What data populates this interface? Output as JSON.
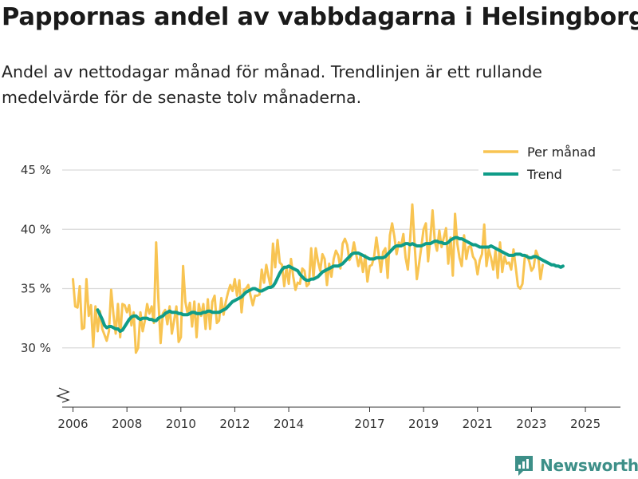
{
  "title": "Pappornas andel av vabbdagarna i Helsingborg",
  "subtitle": "Andel av nettodagar månad för månad. Trendlinjen är ett rullande medelvärde för de senaste tolv månaderna.",
  "brand": "Newsworthy",
  "colors": {
    "monthly": "#f8c452",
    "trend": "#0f9c88",
    "grid": "#d9d9d9",
    "axis": "#333333",
    "brand": "#3d8f88"
  },
  "chart_data": {
    "type": "line",
    "title": "Pappornas andel av vabbdagarna i Helsingborg",
    "xlabel": "",
    "ylabel": "",
    "unit": "%",
    "ylim": [
      25,
      45
    ],
    "xlim": [
      2005.6,
      2026.3
    ],
    "yticks": [
      30,
      35,
      40,
      45
    ],
    "ytick_labels": [
      "30 %",
      "35 %",
      "40 %",
      "45 %"
    ],
    "xticks": [
      2006,
      2008,
      2010,
      2012,
      2014,
      2017,
      2019,
      2021,
      2023,
      2025
    ],
    "xtick_labels": [
      "2006",
      "2008",
      "2010",
      "2012",
      "2014",
      "2017",
      "2019",
      "2021",
      "2023",
      "2025"
    ],
    "axis_break": true,
    "legend_position": "top-right",
    "series": [
      {
        "name": "Per månad",
        "start": 2006.0,
        "step_months": 1,
        "values": [
          35.8,
          33.5,
          33.4,
          35.2,
          31.6,
          31.7,
          35.8,
          32.7,
          33.6,
          30.1,
          33.5,
          31.4,
          33.1,
          31.6,
          31.1,
          30.6,
          31.4,
          34.9,
          32.8,
          31.2,
          33.7,
          30.9,
          33.7,
          33.6,
          33.0,
          33.6,
          31.9,
          33.0,
          29.6,
          30.0,
          33.0,
          31.4,
          32.3,
          33.7,
          32.9,
          33.5,
          32.1,
          38.9,
          34.1,
          30.4,
          32.9,
          33.2,
          32.0,
          33.5,
          31.2,
          32.3,
          33.5,
          30.5,
          30.9,
          36.9,
          33.9,
          32.9,
          33.8,
          31.8,
          33.9,
          30.9,
          33.7,
          32.7,
          33.7,
          31.6,
          34.1,
          31.6,
          33.9,
          34.4,
          32.1,
          32.3,
          34.2,
          32.8,
          33.9,
          34.7,
          35.3,
          34.8,
          35.8,
          34.4,
          35.7,
          33.0,
          34.9,
          35.0,
          35.3,
          34.4,
          33.6,
          34.4,
          34.4,
          34.5,
          36.6,
          35.5,
          37.0,
          36.0,
          35.1,
          38.8,
          36.8,
          39.1,
          37.2,
          37.0,
          35.2,
          36.8,
          35.4,
          37.5,
          36.0,
          34.9,
          35.5,
          35.4,
          36.7,
          36.5,
          35.2,
          35.4,
          38.4,
          35.9,
          38.4,
          37.3,
          36.5,
          37.9,
          37.5,
          35.3,
          37.1,
          36.0,
          37.5,
          38.2,
          37.8,
          36.7,
          38.8,
          39.2,
          38.7,
          37.4,
          37.8,
          38.9,
          37.9,
          36.9,
          37.8,
          36.4,
          37.8,
          35.6,
          36.9,
          37.0,
          37.7,
          39.3,
          37.9,
          36.4,
          38.1,
          38.4,
          35.9,
          39.5,
          40.5,
          39.4,
          37.9,
          38.9,
          38.6,
          39.6,
          37.6,
          36.6,
          39.1,
          42.1,
          38.7,
          35.8,
          37.1,
          38.5,
          40.0,
          40.5,
          37.3,
          39.2,
          41.6,
          39.0,
          38.2,
          39.9,
          38.5,
          39.3,
          40.1,
          37.1,
          39.3,
          36.1,
          41.3,
          38.8,
          37.6,
          36.9,
          39.5,
          37.5,
          38.5,
          38.6,
          37.7,
          37.4,
          36.2,
          37.4,
          37.9,
          40.4,
          36.9,
          38.3,
          37.6,
          36.6,
          38.2,
          35.9,
          38.9,
          36.4,
          37.7,
          37.1,
          37.2,
          36.6,
          38.3,
          36.8,
          35.2,
          35.0,
          35.4,
          37.6,
          37.8,
          37.3,
          36.5,
          36.8,
          38.2,
          37.7,
          35.8,
          37.0
        ],
        "color": "#f8c452"
      },
      {
        "name": "Trend",
        "start": 2006.917,
        "step_months": 1,
        "values": [
          33.2,
          32.8,
          32.4,
          31.9,
          31.7,
          31.8,
          31.8,
          31.7,
          31.6,
          31.6,
          31.4,
          31.5,
          31.8,
          32.1,
          32.4,
          32.6,
          32.7,
          32.7,
          32.5,
          32.4,
          32.5,
          32.5,
          32.5,
          32.4,
          32.4,
          32.3,
          32.3,
          32.5,
          32.6,
          32.7,
          32.9,
          33.0,
          33.1,
          33.0,
          33.0,
          33.0,
          32.9,
          32.9,
          32.8,
          32.8,
          32.8,
          32.9,
          33.0,
          33.0,
          32.9,
          32.9,
          32.9,
          33.0,
          33.0,
          33.1,
          33.1,
          33.0,
          33.0,
          33.0,
          33.0,
          33.1,
          33.2,
          33.3,
          33.5,
          33.7,
          33.9,
          34.0,
          34.1,
          34.2,
          34.3,
          34.5,
          34.7,
          34.8,
          34.9,
          35.0,
          35.0,
          34.9,
          34.8,
          34.8,
          34.9,
          35.0,
          35.1,
          35.1,
          35.2,
          35.5,
          35.9,
          36.3,
          36.6,
          36.8,
          36.8,
          36.9,
          36.8,
          36.7,
          36.6,
          36.5,
          36.2,
          36.0,
          35.8,
          35.7,
          35.7,
          35.8,
          35.8,
          35.9,
          36.0,
          36.2,
          36.4,
          36.5,
          36.6,
          36.7,
          36.8,
          36.9,
          36.9,
          36.9,
          37.0,
          37.1,
          37.3,
          37.5,
          37.7,
          37.9,
          38.0,
          38.0,
          38.0,
          37.9,
          37.8,
          37.7,
          37.6,
          37.5,
          37.5,
          37.5,
          37.6,
          37.6,
          37.6,
          37.6,
          37.7,
          37.9,
          38.1,
          38.3,
          38.5,
          38.6,
          38.6,
          38.6,
          38.7,
          38.8,
          38.8,
          38.7,
          38.8,
          38.7,
          38.6,
          38.6,
          38.6,
          38.7,
          38.8,
          38.8,
          38.8,
          38.9,
          39.0,
          39.0,
          38.9,
          38.9,
          38.8,
          38.8,
          38.9,
          39.1,
          39.2,
          39.3,
          39.3,
          39.2,
          39.2,
          39.1,
          39.0,
          38.9,
          38.8,
          38.7,
          38.7,
          38.6,
          38.5,
          38.5,
          38.5,
          38.5,
          38.5,
          38.6,
          38.5,
          38.4,
          38.3,
          38.2,
          38.1,
          38.0,
          37.9,
          37.8,
          37.8,
          37.8,
          37.9,
          37.9,
          37.9,
          37.8,
          37.8,
          37.7,
          37.6,
          37.6,
          37.7,
          37.7,
          37.6,
          37.5,
          37.4,
          37.3,
          37.2,
          37.1,
          37.0,
          37.0,
          36.9,
          36.9,
          36.8,
          36.9
        ],
        "color": "#0f9c88"
      }
    ]
  }
}
